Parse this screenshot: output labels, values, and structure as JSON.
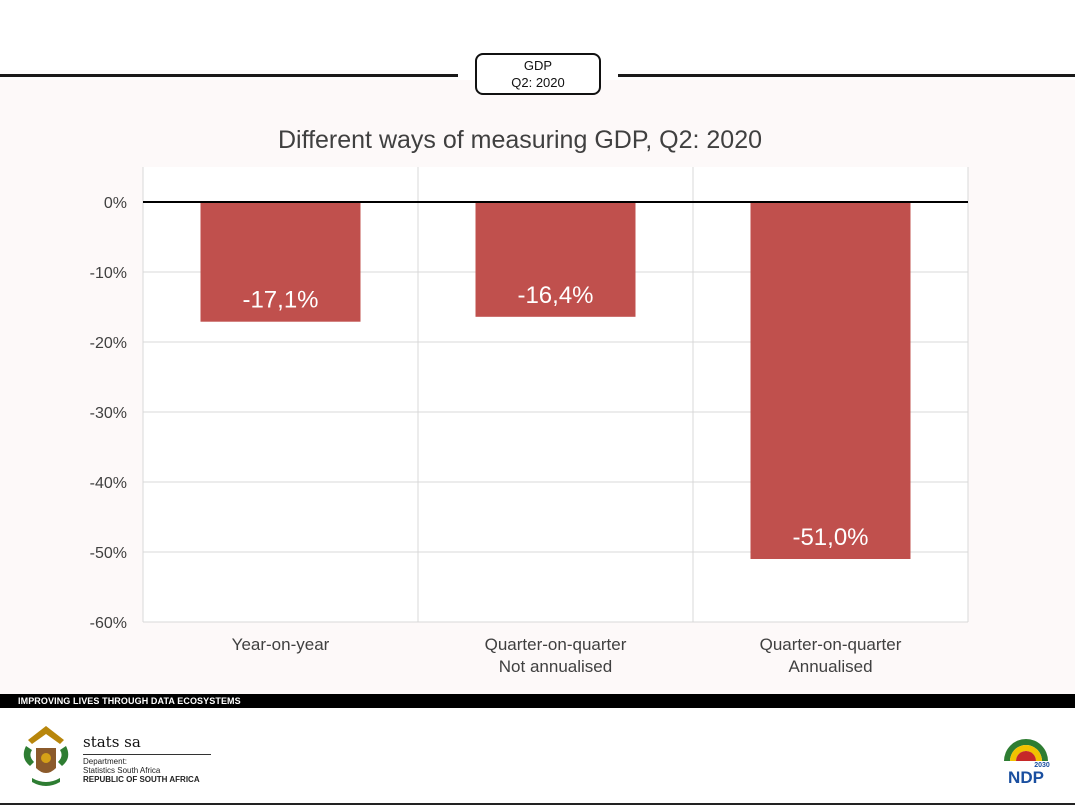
{
  "badge": {
    "line1": "GDP",
    "line2": "Q2: 2020"
  },
  "chart_data": {
    "type": "bar",
    "title": "Different ways of measuring GDP, Q2: 2020",
    "categories": [
      [
        "Year-on-year"
      ],
      [
        "Quarter-on-quarter",
        "Not annualised"
      ],
      [
        "Quarter-on-quarter",
        "Annualised"
      ]
    ],
    "values": [
      -17.1,
      -16.4,
      -51.0
    ],
    "data_labels": [
      "-17,1%",
      "-16,4%",
      "-51,0%"
    ],
    "yticks": [
      "0%",
      "-10%",
      "-20%",
      "-30%",
      "-40%",
      "-50%",
      "-60%"
    ],
    "ylim": [
      -60,
      0
    ],
    "grid": true,
    "bar_color": "#c0504d"
  },
  "footer": {
    "tagline": "IMPROVING LIVES THROUGH DATA ECOSYSTEMS",
    "org_name": "stats sa",
    "dept_line1": "Department:",
    "dept_line2": "Statistics South Africa",
    "dept_line3": "REPUBLIC OF SOUTH AFRICA",
    "ndp_text": "NDP",
    "ndp_year": "2030"
  },
  "colors": {
    "bar": "#c0504d",
    "grid": "#d9d9d9",
    "panel": "#fdf9f9"
  }
}
